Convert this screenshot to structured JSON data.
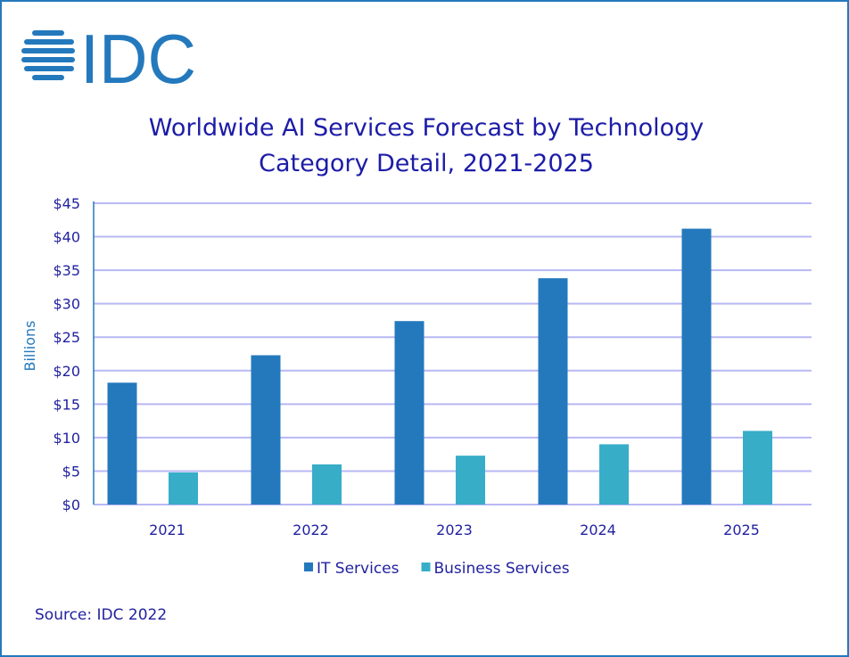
{
  "logo": {
    "text": "IDC",
    "color": "#2479bd"
  },
  "chart_data": {
    "type": "bar",
    "title": "Worldwide AI Services Forecast by Technology Category Detail, 2021-2025",
    "title_lines": [
      "Worldwide AI Services Forecast by Technology",
      "Category Detail, 2021-2025"
    ],
    "categories": [
      "2021",
      "2022",
      "2023",
      "2024",
      "2025"
    ],
    "series": [
      {
        "name": "IT Services",
        "values": [
          18.2,
          22.3,
          27.4,
          33.8,
          41.2
        ],
        "color": "#2479bd"
      },
      {
        "name": "Business Services",
        "values": [
          4.8,
          6.0,
          7.3,
          9.0,
          11.0
        ],
        "color": "#37adc8"
      }
    ],
    "xlabel": "",
    "ylabel": "Billions",
    "ylim": [
      0,
      45
    ],
    "yticks": [
      "$0",
      "$5",
      "$10",
      "$15",
      "$20",
      "$25",
      "$30",
      "$35",
      "$40",
      "$45"
    ],
    "grid": true,
    "legend": "bottom"
  },
  "source": "Source: IDC 2022"
}
